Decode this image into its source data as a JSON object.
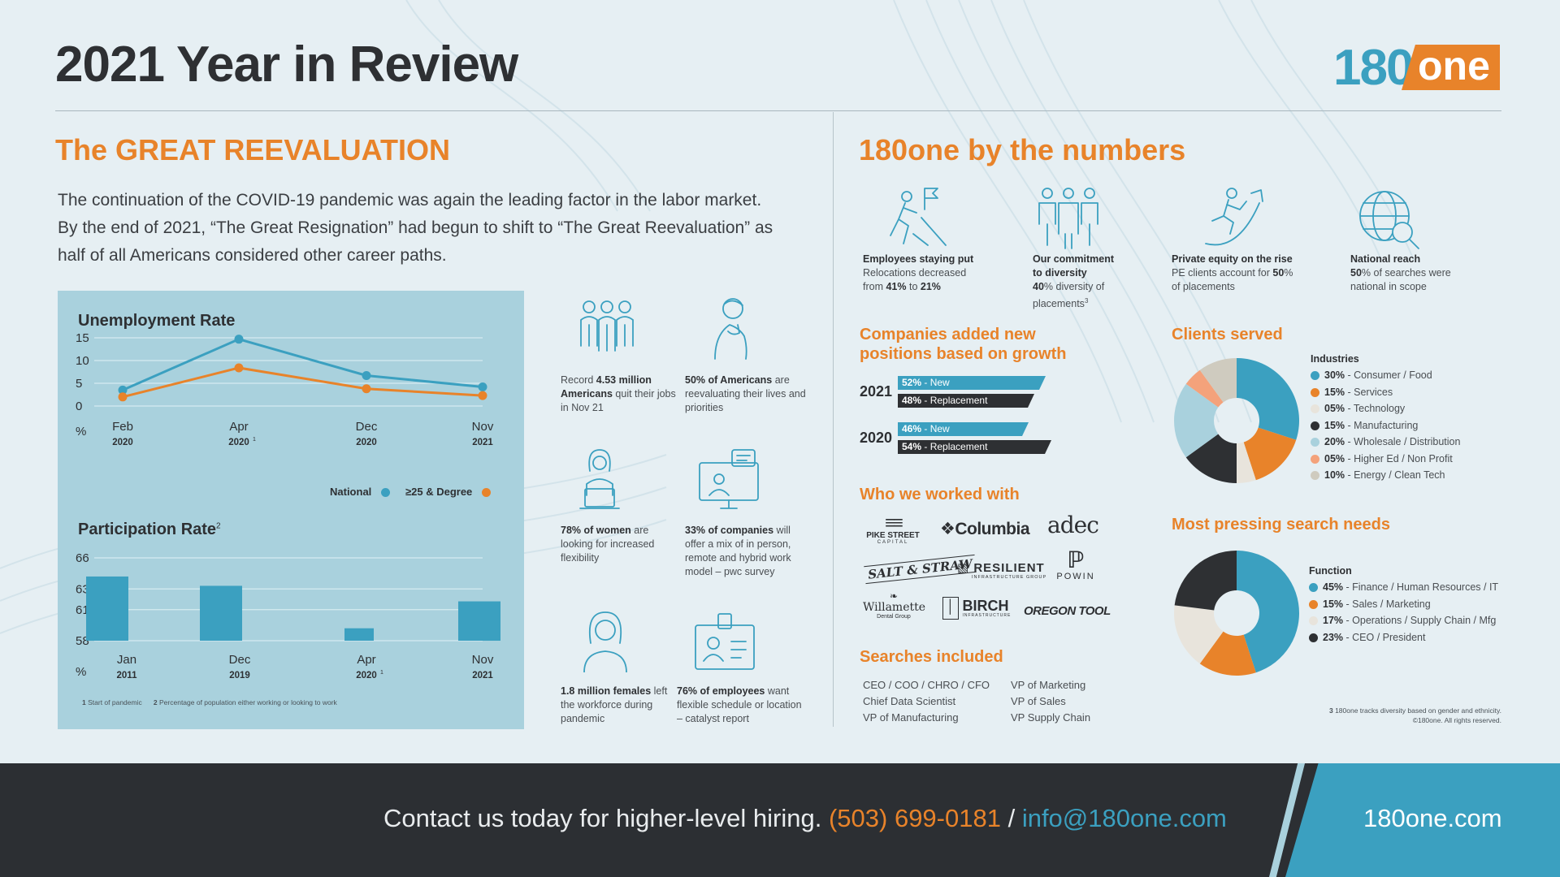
{
  "header": {
    "title": "2021 Year in Review",
    "logo_num": "180",
    "logo_word": "one"
  },
  "left": {
    "heading": "The GREAT REEVALUATION",
    "intro": [
      "The continuation of the COVID-19 pandemic was again the leading factor in the labor market.",
      "By the end of 2021, “The Great Resignation” had begun to shift to “The Great Reevaluation” as",
      "half of all Americans considered other career paths."
    ],
    "unemployment_title": "Unemployment Rate",
    "participation_title": "Participation Rate",
    "participation_sup": "2",
    "legend_national": "National",
    "legend_degree": "≥25 & Degree",
    "footnote1_num": "1",
    "footnote1": "Start of pandemic",
    "footnote2_num": "2",
    "footnote2": "Percentage of population either working or looking to work"
  },
  "chart_data": [
    {
      "type": "line",
      "title": "Unemployment Rate",
      "ylabel": "%",
      "x": [
        "Feb 2020",
        "Apr 2020",
        "Dec 2020",
        "Nov 2021"
      ],
      "x_top": [
        "Feb",
        "Apr",
        "Dec",
        "Nov"
      ],
      "x_bottom": [
        "2020",
        "2020",
        "2020",
        "2021"
      ],
      "x_sup": [
        "",
        "1",
        "",
        ""
      ],
      "yticks": [
        0,
        5,
        10,
        15
      ],
      "ylim": [
        0,
        15
      ],
      "series": [
        {
          "name": "National",
          "color": "#3ba0c0",
          "values": [
            3.5,
            14.7,
            6.7,
            4.2
          ]
        },
        {
          "name": "≥25 & Degree",
          "color": "#e8832a",
          "values": [
            2.0,
            8.4,
            3.8,
            2.3
          ]
        }
      ],
      "grid": true,
      "legend": "bottom-right"
    },
    {
      "type": "bar",
      "title": "Participation Rate",
      "ylabel": "%",
      "categories": [
        "Jan 2011",
        "Dec 2019",
        "Apr 2020",
        "Nov 2021"
      ],
      "x_top": [
        "Jan",
        "Dec",
        "Apr",
        "Nov"
      ],
      "x_bottom": [
        "2011",
        "2019",
        "2020",
        "2021"
      ],
      "x_sup": [
        "",
        "",
        "1",
        ""
      ],
      "values": [
        64.2,
        63.3,
        59.2,
        61.8
      ],
      "yticks": [
        58,
        61,
        63,
        66
      ],
      "ylim": [
        58,
        66
      ],
      "color": "#3ba0c0",
      "grid": true
    }
  ],
  "stats": [
    {
      "icon": "group-icon",
      "pre": "Record ",
      "bold": "4.53 million Americans",
      "post": " quit their jobs in Nov 21"
    },
    {
      "icon": "thinking-person-icon",
      "pre": "",
      "bold": "50% of Americans",
      "post": " are reevaluating their lives and priorities"
    },
    {
      "icon": "woman-laptop-icon",
      "pre": "",
      "bold": "78% of women",
      "post": " are looking for increased flexibility"
    },
    {
      "icon": "video-call-icon",
      "pre": "",
      "bold": "33% of companies",
      "post": " will offer a mix of in person, remote and hybrid work model – pwc survey"
    },
    {
      "icon": "woman-icon",
      "pre": "",
      "bold": "1.8 million females",
      "post": " left the workforce during pandemic"
    },
    {
      "icon": "id-badge-icon",
      "pre": "",
      "bold": "76% of employees",
      "post": " want flexible schedule or location – catalyst report"
    }
  ],
  "right": {
    "heading": "180one by the numbers",
    "numbers": [
      {
        "icon": "climber-flag-icon",
        "title": "Employees staying put",
        "l1": "Relocations decreased",
        "l2_pre": "from ",
        "l2_b1": "41%",
        "l2_mid": " to ",
        "l2_b2": "21%",
        "l3": ""
      },
      {
        "icon": "diversity-group-icon",
        "title": "Our commitment",
        "title2": "to diversity",
        "l1_b": "40",
        "l1": "% diversity of",
        "l2": "placements",
        "sup": "3"
      },
      {
        "icon": "runner-arrow-icon",
        "title": "Private equity on the rise",
        "l1_pre": "PE clients account for ",
        "l1_b": "50",
        "l1_post": "%",
        "l2": "of placements"
      },
      {
        "icon": "globe-search-icon",
        "title": "National reach",
        "l1_b": "50",
        "l1_post": "% of searches were",
        "l2": "national in scope"
      }
    ],
    "companies_heading_1": "Companies added new",
    "companies_heading_2": "positions based on growth",
    "companies": [
      {
        "year": "2021",
        "new_pct": "52%",
        "new_label": " - New",
        "rep_pct": "48%",
        "rep_label": " - Replacement",
        "new_val": 52,
        "rep_val": 48
      },
      {
        "year": "2020",
        "new_pct": "46%",
        "new_label": " - New",
        "rep_pct": "54%",
        "rep_label": " - Replacement",
        "new_val": 46,
        "rep_val": 54
      }
    ],
    "clients_heading": "Who we worked with",
    "clients": [
      "PIKE STREET",
      "Columbia",
      "adec",
      "SALT & STRAW",
      "RESILIENT",
      "POWIN",
      "Willamette",
      "BIRCH",
      "OREGON TOOL"
    ],
    "clients_sub": {
      "pike": "CAPITAL",
      "resilient": "INFRASTRUCTURE GROUP",
      "willamette": "Dental Group",
      "birch": "INFRASTRUCTURE"
    },
    "searches_heading": "Searches included",
    "searches_col1": [
      "CEO / COO / CHRO / CFO",
      "Chief Data Scientist",
      "VP of Manufacturing"
    ],
    "searches_col2": [
      "VP of Marketing",
      "VP of Sales",
      "VP Supply Chain"
    ],
    "clients_served_heading": "Clients served",
    "industries_title": "Industries",
    "industries": [
      {
        "pct": "30%",
        "label": " - Consumer / Food",
        "value": 30,
        "color": "#3ba0c0"
      },
      {
        "pct": "15%",
        "label": " - Services",
        "value": 15,
        "color": "#e8832a"
      },
      {
        "pct": "05%",
        "label": " - Technology",
        "value": 5,
        "color": "#e8e4dc"
      },
      {
        "pct": "15%",
        "label": " - Manufacturing",
        "value": 15,
        "color": "#2e3033"
      },
      {
        "pct": "20%",
        "label": " - Wholesale / Distribution",
        "value": 20,
        "color": "#a9d1dd"
      },
      {
        "pct": "05%",
        "label": " - Higher Ed / Non Profit",
        "value": 5,
        "color": "#f4a27b"
      },
      {
        "pct": "10%",
        "label": " - Energy / Clean Tech",
        "value": 10,
        "color": "#cfcbbf"
      }
    ],
    "pressing_heading": "Most pressing search needs",
    "function_title": "Function",
    "functions": [
      {
        "pct": "45%",
        "label": " - Finance / Human Resources / IT",
        "value": 45,
        "color": "#3ba0c0"
      },
      {
        "pct": "15%",
        "label": " - Sales / Marketing",
        "value": 15,
        "color": "#e8832a"
      },
      {
        "pct": "17%",
        "label": " - Operations / Supply Chain / Mfg",
        "value": 17,
        "color": "#e8e4dc"
      },
      {
        "pct": "23%",
        "label": " - CEO / President",
        "value": 23,
        "color": "#2e3033"
      }
    ],
    "fine1_num": "3",
    "fine1": " 180one tracks diversity based on gender and ethnicity.",
    "fine2": "©180one. All rights reserved."
  },
  "footer": {
    "contact": "Contact us today for higher-level hiring.",
    "phone": "(503) 699-0181",
    "sep": " / ",
    "email": "info@180one.com",
    "site": "180one.com"
  },
  "colors": {
    "teal": "#3ba0c0",
    "orange": "#e8832a",
    "dark": "#2e3033",
    "panel": "#a9d1dd",
    "background": "#e6eff3"
  }
}
